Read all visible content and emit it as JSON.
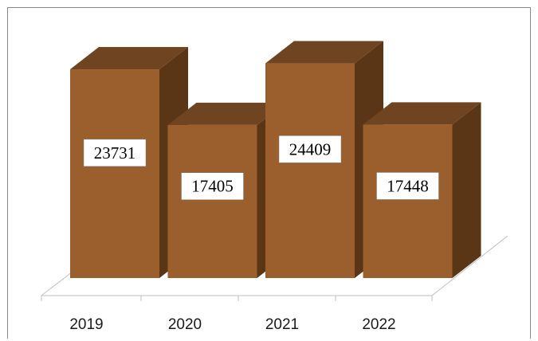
{
  "chart_data": {
    "type": "bar",
    "categories": [
      "2019",
      "2020",
      "2021",
      "2022"
    ],
    "values": [
      23731,
      17405,
      24409,
      17448
    ],
    "data_labels": [
      "23731",
      "17405",
      "24409",
      "17448"
    ],
    "title": "",
    "xlabel": "",
    "ylabel": "",
    "ylim": [
      0,
      26000
    ],
    "grid": false,
    "legend": "none",
    "style": "3d-column",
    "colors": {
      "front": "#9b5f2d",
      "top": "#6f4420",
      "side": "#5a3516",
      "floor_line": "#bfbfbf",
      "label_box": "#ffffff"
    }
  }
}
